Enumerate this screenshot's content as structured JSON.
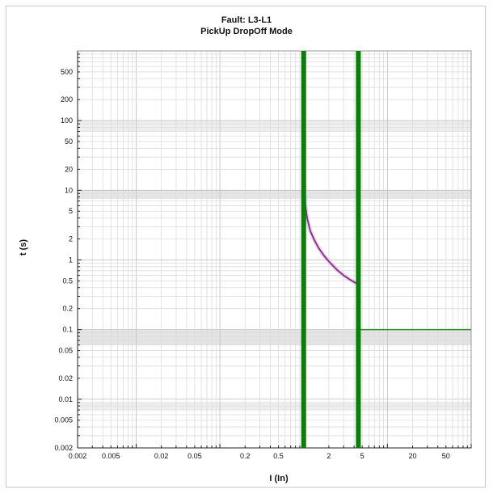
{
  "chart_data": {
    "type": "line",
    "title": "Fault: L3-L1",
    "subtitle": "PickUp DropOff Mode",
    "xlabel": "I (In)",
    "ylabel": "t (s)",
    "xscale": "log",
    "yscale": "log",
    "xlim": [
      0.002,
      100
    ],
    "ylim": [
      0.002,
      1000
    ],
    "grid": true,
    "x_ticks": [
      0.002,
      0.005,
      0.02,
      0.05,
      0.2,
      0.5,
      2,
      5,
      20,
      50
    ],
    "x_tick_labels": [
      "0.002",
      "0.005",
      "0.02",
      "0.05",
      "0.2",
      "0.5",
      "2",
      "5",
      "20",
      "50"
    ],
    "y_ticks": [
      0.002,
      0.005,
      0.01,
      0.02,
      0.05,
      0.1,
      0.2,
      0.5,
      1,
      2,
      5,
      10,
      20,
      50,
      100,
      200,
      500
    ],
    "y_tick_labels": [
      "0.002",
      "0.005",
      "0.01",
      "0.02",
      "0.05",
      "0.1",
      "0.2",
      "0.5",
      "1",
      "2",
      "5",
      "10",
      "20",
      "50",
      "100",
      "200",
      "500"
    ],
    "vertical_markers": [
      {
        "x": 1,
        "color": "#0a7d0a"
      },
      {
        "x": 4.5,
        "color": "#0a7d0a"
      }
    ],
    "shaded_bands": [
      {
        "y_range": [
          7.5,
          10
        ],
        "color": "#e6e6e6"
      },
      {
        "y_range": [
          70,
          100
        ],
        "color": "#eeeeee"
      },
      {
        "y_range": [
          0.06,
          0.1
        ],
        "color": "#e4e4e4"
      },
      {
        "y_range": [
          0.007,
          0.009
        ],
        "color": "#eeeeee"
      }
    ],
    "series": [
      {
        "color": "#8b2a8b",
        "x": [
          1.0,
          1.05,
          1.1,
          1.2,
          1.35,
          1.5,
          1.75,
          2.0,
          2.5,
          3.0,
          3.5,
          4.0,
          4.5
        ],
        "y": [
          15,
          6,
          4,
          2.6,
          1.9,
          1.5,
          1.15,
          0.95,
          0.72,
          0.6,
          0.53,
          0.48,
          0.45
        ]
      },
      {
        "color": "#2e8b2e",
        "x": [
          4.5,
          100
        ],
        "y": [
          0.1,
          0.1
        ]
      }
    ]
  }
}
